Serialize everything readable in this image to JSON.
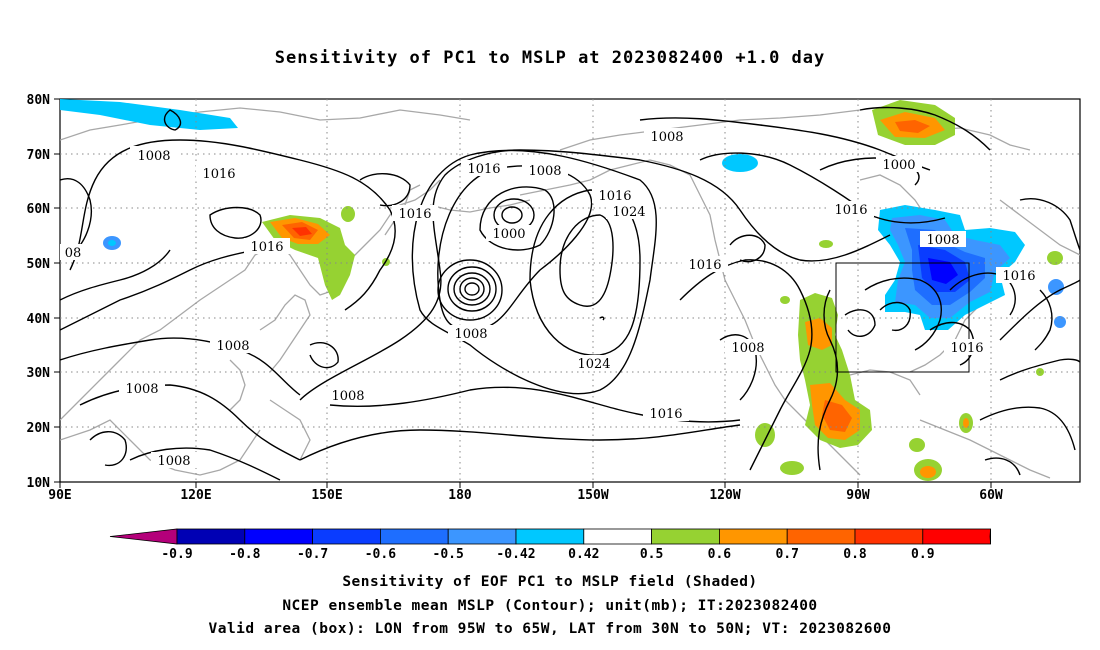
{
  "title": "Sensitivity of PC1 to MSLP at 2023082400 +1.0 day",
  "lon_labels": [
    "90E",
    "120E",
    "150E",
    "180",
    "150W",
    "120W",
    "90W",
    "60W"
  ],
  "lat_labels": [
    "80N",
    "70N",
    "60N",
    "50N",
    "40N",
    "30N",
    "20N",
    "10N"
  ],
  "colorbar": {
    "labels": [
      "-0.9",
      "-0.8",
      "-0.7",
      "-0.6",
      "-0.5",
      "-0.42",
      "0.42",
      "0.5",
      "0.6",
      "0.7",
      "0.8",
      "0.9"
    ],
    "colors": [
      "#0000b4",
      "#0000ff",
      "#0a3cff",
      "#1e6eff",
      "#3c96ff",
      "#00c8ff",
      "#ffffff",
      "#96d232",
      "#ff9600",
      "#ff6400",
      "#ff3200",
      "#ff0000"
    ],
    "low_end_color": "#b4007a",
    "high_end_color": "#ff96c8"
  },
  "contour_labels": [
    "1008",
    "1016",
    "1016",
    "1008",
    "1016",
    "1016",
    "1008",
    "1000",
    "1016",
    "1024",
    "1016",
    "1008",
    "1024",
    "1016",
    "1008",
    "1016",
    "1000",
    "1008",
    "1016",
    "1016",
    "1008",
    "1008",
    "1008",
    "1008",
    "08"
  ],
  "captions": {
    "line1": "Sensitivity of EOF PC1 to MSLP field (Shaded)",
    "line2": "NCEP ensemble mean MSLP (Contour); unit(mb); IT:2023082400",
    "line3": "Valid area (box): LON from 95W to 65W, LAT from 30N to 50N; VT: 2023082600"
  }
}
